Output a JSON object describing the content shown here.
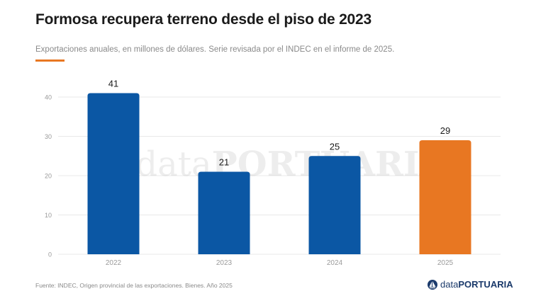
{
  "header": {
    "title": "Formosa recupera terreno desde el piso de 2023",
    "subtitle": "Exportaciones anuales, en millones de dólares. Serie revisada por el INDEC en el informe de 2025."
  },
  "footer": {
    "source": "Fuente: INDEC, Origen provincial de las exportaciones. Bienes. Año 2025",
    "logo_light": "data",
    "logo_bold": "PORTUARIA"
  },
  "watermark": {
    "light": "data",
    "bold": "PORTUARIA"
  },
  "colors": {
    "primary": "#0b57a4",
    "highlight": "#e87722",
    "accent_line": "#e87722",
    "grid": "#e8e8e8",
    "tick_text": "#9a9a9a",
    "value_text": "#1a1a1a"
  },
  "chart_data": {
    "type": "bar",
    "categories": [
      "2022",
      "2023",
      "2024",
      "2025"
    ],
    "values": [
      41,
      21,
      25,
      29
    ],
    "highlight_index": 3,
    "ylim": [
      0,
      40
    ],
    "yticks": [
      0,
      10,
      20,
      30,
      40
    ],
    "grid": true,
    "title": "",
    "xlabel": "",
    "ylabel": ""
  }
}
